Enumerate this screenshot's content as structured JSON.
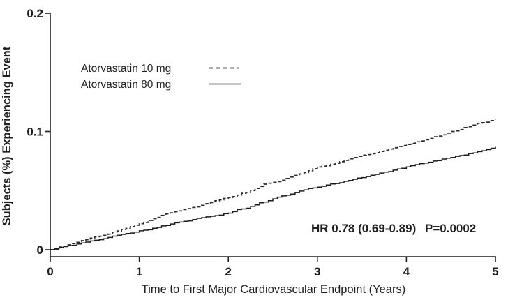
{
  "chart_data": {
    "type": "line",
    "subtype": "kaplan-meier-cumulative-incidence",
    "title": "",
    "xlabel": "Time to First Major Cardiovascular Endpoint (Years)",
    "ylabel": "Subjects (%) Experiencing Event",
    "xlim": [
      0,
      5
    ],
    "ylim": [
      0,
      0.2
    ],
    "grid": false,
    "x_ticks": [
      0,
      1,
      2,
      3,
      4,
      5
    ],
    "x_tick_labels": [
      "0",
      "1",
      "2",
      "3",
      "4",
      "5"
    ],
    "y_ticks": [
      0,
      0.1,
      0.2
    ],
    "y_tick_labels": [
      "0",
      "0.1",
      "0.2"
    ],
    "legend_position": "inside-upper-left",
    "x": [
      0,
      0.5,
      1,
      1.5,
      2,
      2.5,
      3,
      3.5,
      4,
      4.5,
      5
    ],
    "series": [
      {
        "name": "Atorvastatin 10 mg",
        "line_style": "dashed",
        "color": "#2b2b2b",
        "values": [
          0,
          0.011,
          0.022,
          0.034,
          0.044,
          0.057,
          0.07,
          0.08,
          0.089,
          0.1,
          0.11
        ]
      },
      {
        "name": "Atorvastatin 80 mg",
        "line_style": "solid",
        "color": "#1c1c1c",
        "values": [
          0,
          0.008,
          0.016,
          0.024,
          0.031,
          0.043,
          0.053,
          0.061,
          0.07,
          0.078,
          0.087
        ]
      }
    ],
    "annotation": {
      "hr": "HR 0.78 (0.69-0.89)",
      "p": "P=0.0002"
    }
  },
  "colors": {
    "background": "#ffffff",
    "axis": "#1f1f1f",
    "text": "#1f1f1f"
  }
}
